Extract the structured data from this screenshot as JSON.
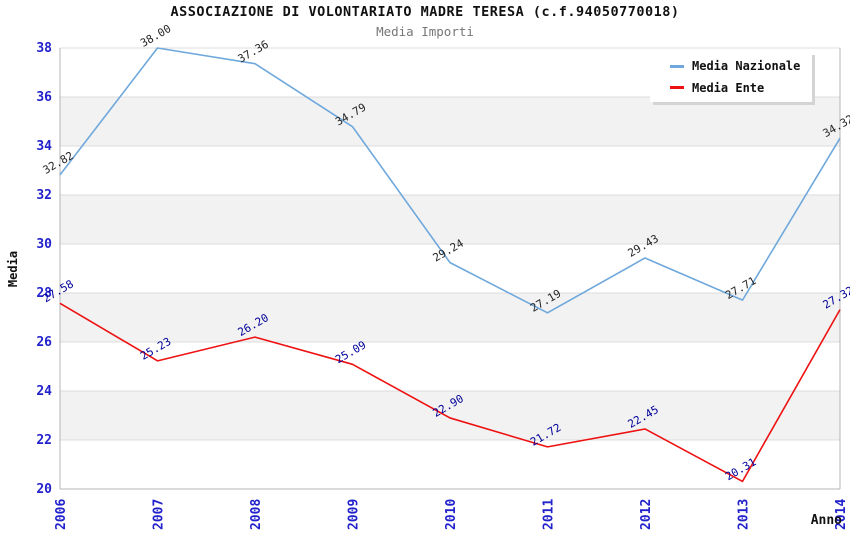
{
  "chart_data": {
    "type": "line",
    "title": "ASSOCIAZIONE DI VOLONTARIATO MADRE TERESA (c.f.94050770018)",
    "subtitle": "Media Importi",
    "xlabel": "Anno",
    "ylabel": "Media",
    "x": [
      2006,
      2007,
      2008,
      2009,
      2010,
      2011,
      2012,
      2013,
      2014
    ],
    "series": [
      {
        "name": "Media Nazionale",
        "color": "#6FA8DC",
        "label_color": "#262626",
        "values": [
          32.82,
          38.0,
          37.36,
          34.79,
          29.24,
          27.19,
          29.43,
          27.71,
          34.32
        ]
      },
      {
        "name": "Media Ente",
        "color": "#EE1111",
        "label_color": "#000099",
        "values": [
          27.58,
          25.23,
          26.2,
          25.09,
          22.9,
          21.72,
          22.45,
          20.31,
          27.32
        ]
      }
    ],
    "ylim": [
      20,
      38
    ],
    "ytick_step": 2,
    "grid": true,
    "legend_position": "top-right",
    "colors": {
      "tick_label": "#2222CC",
      "band": "#F2F2F2",
      "gridline": "#DCDCDC",
      "frame": "#B4B4B4"
    }
  }
}
